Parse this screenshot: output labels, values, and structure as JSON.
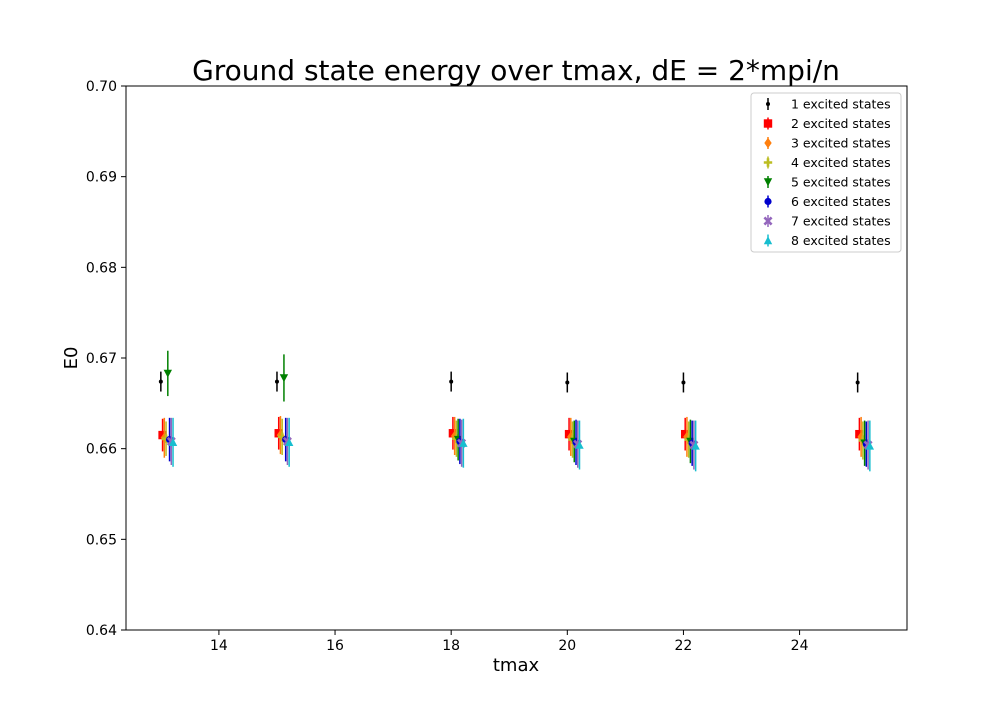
{
  "chart_data": {
    "type": "scatter",
    "title": "Ground state energy over tmax, dE = 2*mpi/n",
    "xlabel": "tmax",
    "ylabel": "E0",
    "xlim": [
      12.4,
      25.85
    ],
    "ylim": [
      0.64,
      0.7
    ],
    "xticks": [
      14,
      16,
      18,
      20,
      22,
      24
    ],
    "yticks": [
      0.64,
      0.65,
      0.66,
      0.67,
      0.68,
      0.69,
      0.7
    ],
    "ytick_labels": [
      "0.64",
      "0.65",
      "0.66",
      "0.67",
      "0.68",
      "0.69",
      "0.70"
    ],
    "legend_position": "top-right",
    "x_offset_per_series": 0.03,
    "series": [
      {
        "name": "1 excited states",
        "color": "#000000",
        "marker": "point",
        "x": [
          13,
          15,
          18,
          20,
          22,
          25
        ],
        "y": [
          0.6674,
          0.6674,
          0.6674,
          0.6673,
          0.6673,
          0.6673
        ],
        "yerr": [
          0.0011,
          0.0011,
          0.0011,
          0.0011,
          0.0011,
          0.0011
        ]
      },
      {
        "name": "2 excited states",
        "color": "#ff0000",
        "marker": "square",
        "x": [
          13,
          15,
          18,
          20,
          22,
          25
        ],
        "y": [
          0.6615,
          0.6617,
          0.6617,
          0.6616,
          0.6616,
          0.6616
        ],
        "yerr": [
          0.0018,
          0.0018,
          0.0018,
          0.0018,
          0.0018,
          0.0018
        ]
      },
      {
        "name": "3 excited states",
        "color": "#ff7f0e",
        "marker": "diamond",
        "x": [
          13,
          15,
          18,
          20,
          22,
          25
        ],
        "y": [
          0.6612,
          0.6615,
          0.6614,
          0.6613,
          0.6613,
          0.6613
        ],
        "yerr": [
          0.0022,
          0.0021,
          0.0021,
          0.0021,
          0.0022,
          0.0022
        ]
      },
      {
        "name": "4 excited states",
        "color": "#bcbd22",
        "marker": "plus",
        "x": [
          13,
          15,
          18,
          20,
          22,
          25
        ],
        "y": [
          0.6611,
          0.6613,
          0.6611,
          0.661,
          0.661,
          0.6609
        ],
        "yerr": [
          0.0019,
          0.002,
          0.002,
          0.002,
          0.002,
          0.0021
        ]
      },
      {
        "name": "5 excited states",
        "color": "#008000",
        "marker": "triangle-down",
        "x": [
          13,
          15,
          18,
          20,
          22,
          25
        ],
        "y": [
          0.6683,
          0.6678,
          0.661,
          0.6608,
          0.6608,
          0.6606
        ],
        "yerr": [
          0.0025,
          0.0026,
          0.0023,
          0.0023,
          0.0024,
          0.0025
        ]
      },
      {
        "name": "6 excited states",
        "color": "#0000cd",
        "marker": "circle",
        "x": [
          13,
          15,
          18,
          20,
          22,
          25
        ],
        "y": [
          0.661,
          0.661,
          0.6608,
          0.6607,
          0.6606,
          0.6605
        ],
        "yerr": [
          0.0024,
          0.0024,
          0.0025,
          0.0025,
          0.0025,
          0.0025
        ]
      },
      {
        "name": "7 excited states",
        "color": "#9467bd",
        "marker": "x",
        "x": [
          13,
          15,
          18,
          20,
          22,
          25
        ],
        "y": [
          0.6608,
          0.6608,
          0.6606,
          0.6605,
          0.6604,
          0.6604
        ],
        "yerr": [
          0.0026,
          0.0026,
          0.0026,
          0.0026,
          0.0027,
          0.0027
        ]
      },
      {
        "name": "8 excited states",
        "color": "#17becf",
        "marker": "triangle-up",
        "x": [
          13,
          15,
          18,
          20,
          22,
          25
        ],
        "y": [
          0.6607,
          0.6607,
          0.6606,
          0.6604,
          0.6603,
          0.6603
        ],
        "yerr": [
          0.0027,
          0.0027,
          0.0027,
          0.0027,
          0.0028,
          0.0028
        ]
      }
    ]
  }
}
